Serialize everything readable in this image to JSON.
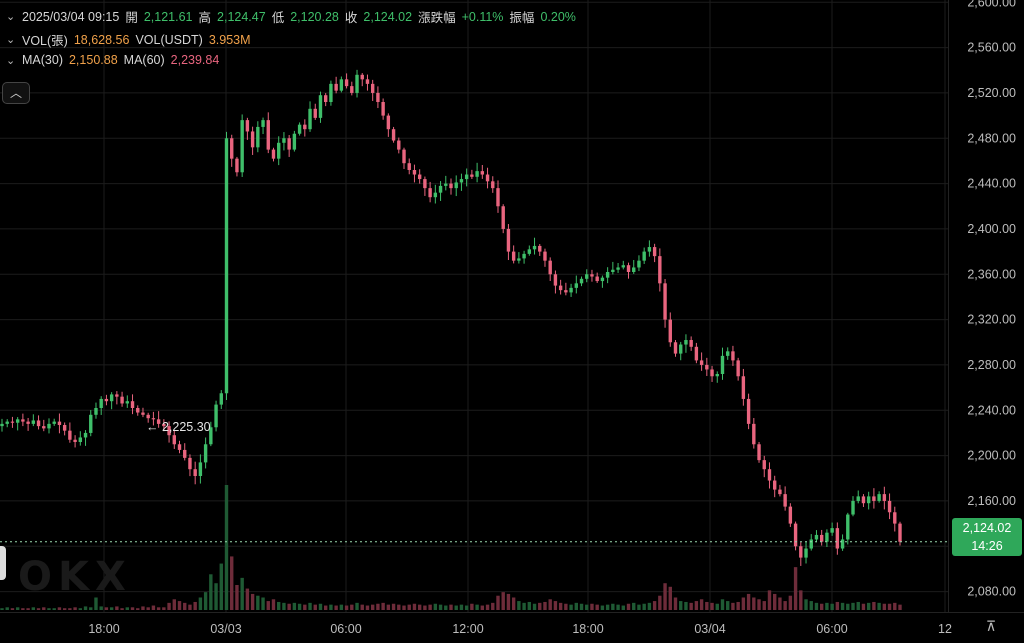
{
  "header": {
    "datetime": "2025/03/04 09:15",
    "open_label": "開",
    "open": "2,121.61",
    "high_label": "高",
    "high": "2,124.47",
    "low_label": "低",
    "low": "2,120.28",
    "close_label": "收",
    "close": "2,124.02",
    "change_label": "漲跌幅",
    "change": "+0.11%",
    "amp_label": "振幅",
    "amp": "0.20%"
  },
  "volume": {
    "vol_label": "VOL(張)",
    "vol_value": "18,628.56",
    "usdt_label": "VOL(USDT)",
    "usdt_value": "3.953M"
  },
  "ma": {
    "ma30_label": "MA(30)",
    "ma30_value": "2,150.88",
    "ma60_label": "MA(60)",
    "ma60_value": "2,239.84"
  },
  "price_tag": {
    "price": "2,124.02",
    "countdown": "14:26"
  },
  "colors": {
    "up": "#3fbf6a",
    "down": "#e9657f",
    "ma30": "#f0a14a",
    "ma60": "#e9657f",
    "background": "#000000"
  },
  "chart_data": {
    "type": "candlestick",
    "y_ticks": [
      2600,
      2560,
      2520,
      2480,
      2440,
      2400,
      2360,
      2320,
      2280,
      2240,
      2200,
      2160,
      2120,
      2080
    ],
    "y_tick_labels": [
      "2,600.00",
      "2,560.00",
      "2,520.00",
      "2,480.00",
      "2,440.00",
      "2,400.00",
      "2,360.00",
      "2,320.00",
      "2,280.00",
      "2,240.00",
      "2,200.00",
      "2,160.00",
      "",
      "2,080.00"
    ],
    "ylim": [
      2062,
      2602
    ],
    "x_ticks": [
      "18:00",
      "03/03",
      "06:00",
      "12:00",
      "18:00",
      "03/04",
      "06:00",
      "12"
    ],
    "current_price": 2124.02,
    "marker": {
      "label": "← 2,225.30",
      "value": 2225.3
    },
    "close_path": [
      2228,
      2230,
      2229,
      2232,
      2230,
      2228,
      2231,
      2226,
      2224,
      2228,
      2230,
      2227,
      2222,
      2214,
      2212,
      2216,
      2220,
      2236,
      2242,
      2250,
      2248,
      2254,
      2252,
      2246,
      2248,
      2242,
      2238,
      2236,
      2233,
      2232,
      2228,
      2226,
      2218,
      2210,
      2205,
      2198,
      2188,
      2182,
      2194,
      2210,
      2225,
      2245,
      2255,
      2480,
      2462,
      2450,
      2496,
      2486,
      2472,
      2490,
      2496,
      2470,
      2462,
      2476,
      2480,
      2470,
      2484,
      2492,
      2488,
      2506,
      2498,
      2518,
      2512,
      2528,
      2522,
      2532,
      2526,
      2520,
      2536,
      2532,
      2528,
      2520,
      2512,
      2500,
      2488,
      2478,
      2470,
      2458,
      2452,
      2448,
      2444,
      2436,
      2428,
      2432,
      2438,
      2440,
      2436,
      2441,
      2444,
      2448,
      2446,
      2451,
      2448,
      2442,
      2436,
      2420,
      2400,
      2380,
      2372,
      2374,
      2378,
      2382,
      2385,
      2380,
      2372,
      2360,
      2350,
      2346,
      2344,
      2348,
      2352,
      2356,
      2360,
      2358,
      2354,
      2357,
      2362,
      2364,
      2366,
      2368,
      2362,
      2366,
      2372,
      2380,
      2384,
      2376,
      2352,
      2320,
      2300,
      2290,
      2298,
      2302,
      2296,
      2284,
      2280,
      2276,
      2270,
      2272,
      2288,
      2292,
      2284,
      2270,
      2250,
      2228,
      2210,
      2196,
      2188,
      2178,
      2170,
      2166,
      2155,
      2140,
      2120,
      2110,
      2118,
      2126,
      2130,
      2124,
      2132,
      2136,
      2118,
      2126,
      2148,
      2160,
      2164,
      2158,
      2164,
      2160,
      2166,
      2160,
      2150,
      2140,
      2124
    ],
    "volume_series": [
      2,
      3,
      2,
      3,
      2,
      2,
      3,
      2,
      3,
      2,
      2,
      3,
      2,
      2,
      3,
      2,
      4,
      3,
      14,
      4,
      3,
      3,
      4,
      2,
      3,
      3,
      2,
      4,
      3,
      5,
      3,
      3,
      8,
      12,
      10,
      8,
      6,
      9,
      14,
      20,
      40,
      30,
      52,
      140,
      60,
      28,
      36,
      24,
      18,
      16,
      14,
      10,
      12,
      9,
      8,
      7,
      8,
      7,
      6,
      8,
      6,
      7,
      5,
      6,
      5,
      6,
      5,
      6,
      8,
      6,
      5,
      6,
      7,
      8,
      6,
      7,
      6,
      5,
      6,
      7,
      6,
      5,
      6,
      7,
      6,
      5,
      6,
      5,
      6,
      5,
      7,
      6,
      5,
      6,
      8,
      16,
      20,
      18,
      14,
      10,
      8,
      9,
      7,
      8,
      9,
      12,
      10,
      8,
      7,
      6,
      8,
      7,
      6,
      7,
      6,
      5,
      6,
      7,
      6,
      5,
      7,
      8,
      6,
      7,
      8,
      10,
      16,
      30,
      26,
      14,
      10,
      9,
      8,
      10,
      12,
      9,
      8,
      7,
      12,
      10,
      8,
      9,
      14,
      18,
      14,
      12,
      10,
      22,
      18,
      14,
      10,
      16,
      48,
      22,
      12,
      10,
      8,
      7,
      8,
      7,
      9,
      8,
      7,
      8,
      9,
      7,
      8,
      9,
      8,
      7,
      7,
      8,
      6
    ]
  }
}
